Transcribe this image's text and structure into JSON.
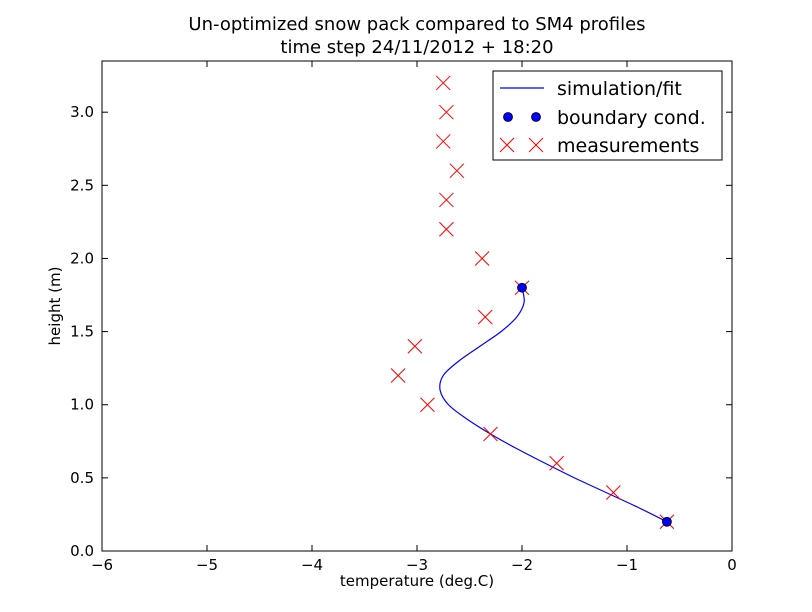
{
  "chart_data": {
    "type": "line",
    "title": "Un-optimized snow pack compared to SM4 profiles",
    "subtitle": "time step 24/11/2012 + 18:20",
    "xlabel": "temperature (deg.C)",
    "ylabel": "height (m)",
    "xlim": [
      -6,
      0
    ],
    "ylim": [
      0,
      3.35
    ],
    "xticks": [
      -6,
      -5,
      -4,
      -3,
      -2,
      -1,
      0
    ],
    "xtick_labels": [
      "−6",
      "−5",
      "−4",
      "−3",
      "−2",
      "−1",
      "0"
    ],
    "yticks": [
      0.0,
      0.5,
      1.0,
      1.5,
      2.0,
      2.5,
      3.0
    ],
    "ytick_labels": [
      "0.0",
      "0.5",
      "1.0",
      "1.5",
      "2.0",
      "2.5",
      "3.0"
    ],
    "grid": false,
    "legend_position": "top-right",
    "series": [
      {
        "name": "simulation/fit",
        "kind": "line",
        "color": "#0000ff",
        "points": [
          [
            -0.62,
            0.2
          ],
          [
            -0.9,
            0.3
          ],
          [
            -1.2,
            0.4
          ],
          [
            -1.5,
            0.5
          ],
          [
            -1.78,
            0.6
          ],
          [
            -2.05,
            0.7
          ],
          [
            -2.3,
            0.8
          ],
          [
            -2.52,
            0.9
          ],
          [
            -2.7,
            1.0
          ],
          [
            -2.78,
            1.1
          ],
          [
            -2.75,
            1.2
          ],
          [
            -2.6,
            1.3
          ],
          [
            -2.4,
            1.4
          ],
          [
            -2.2,
            1.5
          ],
          [
            -2.05,
            1.6
          ],
          [
            -1.98,
            1.7
          ],
          [
            -2.0,
            1.8
          ]
        ]
      },
      {
        "name": "boundary cond.",
        "kind": "dots",
        "color": "#0000ff",
        "points": [
          [
            -2.0,
            1.8
          ],
          [
            -0.62,
            0.2
          ]
        ]
      },
      {
        "name": "measurements",
        "kind": "x-markers",
        "color": "#ff0000",
        "points": [
          [
            -0.62,
            0.2
          ],
          [
            -1.13,
            0.4
          ],
          [
            -1.67,
            0.6
          ],
          [
            -2.3,
            0.8
          ],
          [
            -2.9,
            1.0
          ],
          [
            -3.18,
            1.2
          ],
          [
            -3.02,
            1.4
          ],
          [
            -2.35,
            1.6
          ],
          [
            -2.0,
            1.8
          ],
          [
            -2.38,
            2.0
          ],
          [
            -2.72,
            2.2
          ],
          [
            -2.72,
            2.4
          ],
          [
            -2.62,
            2.6
          ],
          [
            -2.75,
            2.8
          ],
          [
            -2.72,
            3.0
          ],
          [
            -2.75,
            3.2
          ]
        ]
      }
    ]
  }
}
